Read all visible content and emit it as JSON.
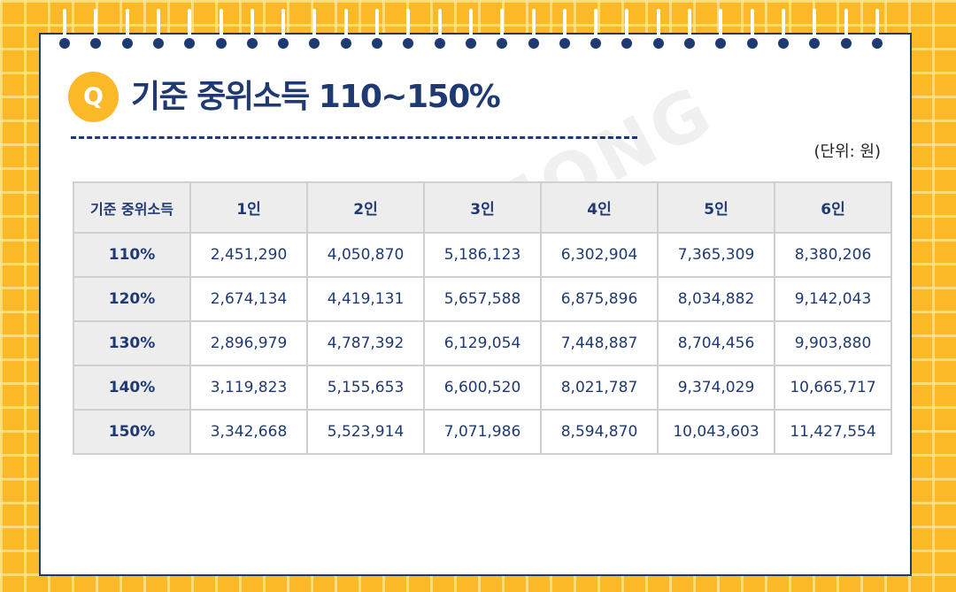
{
  "header": {
    "badge": "Q",
    "title": "기준 중위소득 110~150%",
    "unit_note": "(단위: 원)"
  },
  "table": {
    "corner_label": "기준 중위소득",
    "columns": [
      "1인",
      "2인",
      "3인",
      "4인",
      "5인",
      "6인"
    ],
    "rows": [
      {
        "label": "110%",
        "values": [
          "2,451,290",
          "4,050,870",
          "5,186,123",
          "6,302,904",
          "7,365,309",
          "8,380,206"
        ]
      },
      {
        "label": "120%",
        "values": [
          "2,674,134",
          "4,419,131",
          "5,657,588",
          "6,875,896",
          "8,034,882",
          "9,142,043"
        ]
      },
      {
        "label": "130%",
        "values": [
          "2,896,979",
          "4,787,392",
          "6,129,054",
          "7,448,887",
          "8,704,456",
          "9,903,880"
        ]
      },
      {
        "label": "140%",
        "values": [
          "3,119,823",
          "5,155,653",
          "6,600,520",
          "8,021,787",
          "9,374,029",
          "10,665,717"
        ]
      },
      {
        "label": "150%",
        "values": [
          "3,342,668",
          "5,523,914",
          "7,071,986",
          "8,594,870",
          "10,043,603",
          "11,427,554"
        ]
      }
    ]
  },
  "watermark": "KKUNMONG",
  "colors": {
    "background": "#FBB827",
    "navy": "#1F3A73",
    "header_cell": "#EDEDED",
    "border": "#D0D0D0"
  }
}
